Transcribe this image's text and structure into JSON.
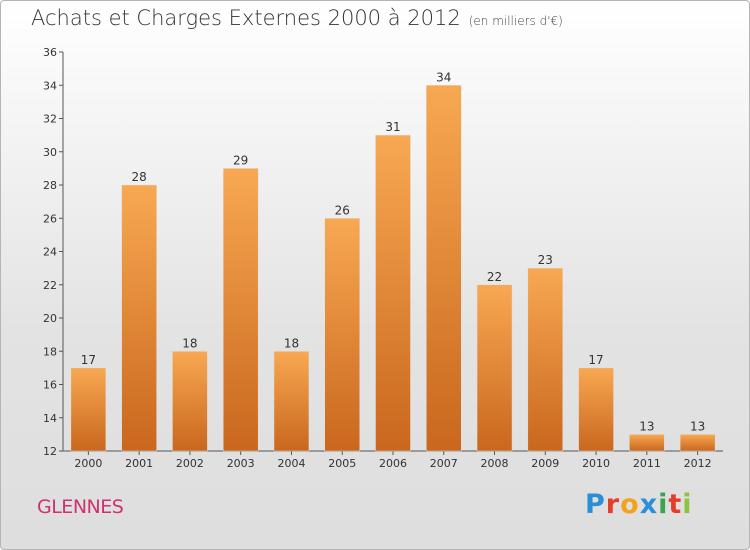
{
  "header": {
    "title": "Achats et Charges Externes 2000 à 2012",
    "subtitle": "(en milliers d'€)"
  },
  "footer": {
    "commune": "GLENNES",
    "logo": "Proxiti"
  },
  "colors": {
    "bar_light": "#f6a24a",
    "bar_dark": "#c9671e",
    "commune_text": "#d0316f"
  },
  "chart_data": {
    "type": "bar",
    "title": "Achats et Charges Externes 2000 à 2012",
    "subtitle": "(en milliers d'€)",
    "xlabel": "",
    "ylabel": "",
    "categories": [
      "2000",
      "2001",
      "2002",
      "2003",
      "2004",
      "2005",
      "2006",
      "2007",
      "2008",
      "2009",
      "2010",
      "2011",
      "2012"
    ],
    "values": [
      17,
      28,
      18,
      29,
      18,
      26,
      31,
      34,
      22,
      23,
      17,
      13,
      13
    ],
    "ylim": [
      12,
      36
    ],
    "yticks": [
      12,
      14,
      16,
      18,
      20,
      22,
      24,
      26,
      28,
      30,
      32,
      34,
      36
    ],
    "grid": false,
    "legend": "none"
  }
}
